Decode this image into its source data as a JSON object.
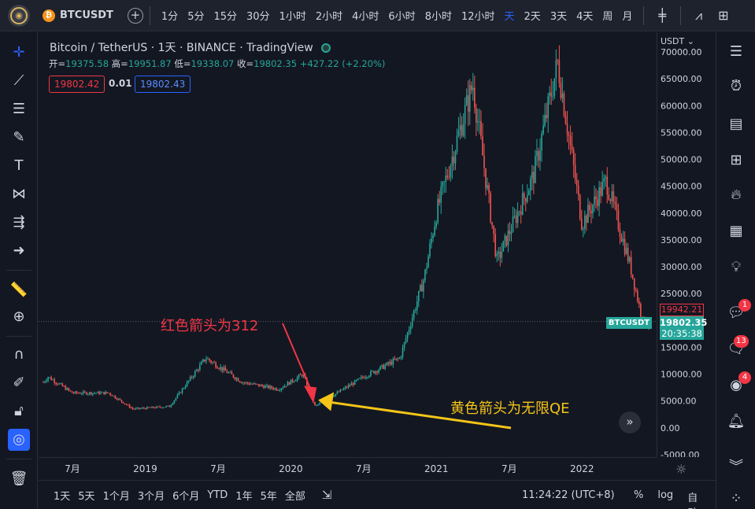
{
  "topbar": {
    "logo_icon": "globe-icon",
    "symbol": "BTCUSDT",
    "intervals": [
      "1分",
      "5分",
      "15分",
      "30分",
      "1小时",
      "2小时",
      "4小时",
      "6小时",
      "8小时",
      "12小时",
      "天",
      "2天",
      "3天",
      "4天",
      "周",
      "月"
    ],
    "active_interval_index": 10,
    "icons": [
      "candles-icon",
      "indicators-icon",
      "templates-icon"
    ]
  },
  "legend": {
    "title": "Bitcoin / TetherUS · 1天 · BINANCE · TradingView",
    "open_label": "开",
    "open": "19375.58",
    "high_label": "高",
    "high": "19951.87",
    "low_label": "低",
    "low": "19338.07",
    "close_label": "收",
    "close": "19802.35",
    "change": "+427.22 (+2.20%)",
    "bid": "19802.42",
    "spread": "0.01",
    "ask": "19802.43"
  },
  "annotations": {
    "red_text": "红色箭头为312",
    "yellow_text": "黄色箭头为无限QE"
  },
  "price_axis": {
    "currency": "USDT",
    "ticks": [
      "70000.00",
      "65000.00",
      "60000.00",
      "55000.00",
      "50000.00",
      "45000.00",
      "40000.00",
      "35000.00",
      "30000.00",
      "25000.00",
      "20000.00",
      "15000.00",
      "10000.00",
      "5000.00",
      "0.00",
      "-5000.00"
    ],
    "tick_values": [
      70000,
      65000,
      60000,
      55000,
      50000,
      45000,
      40000,
      35000,
      30000,
      25000,
      20000,
      15000,
      10000,
      5000,
      0,
      -5000
    ],
    "high_tag": "19942.21",
    "last_price": "19802.35",
    "countdown": "20:35:38",
    "symbol_tag": "BTCUSDT"
  },
  "time_axis": {
    "labels": [
      "7月",
      "2019",
      "7月",
      "2020",
      "7月",
      "2021",
      "7月",
      "2022"
    ]
  },
  "chart_data": {
    "type": "candlestick",
    "symbol": "BTCUSDT",
    "interval": "1天",
    "x_range": [
      "2018-04",
      "2022-06"
    ],
    "ylim": [
      -5000,
      70000
    ],
    "key_points": [
      {
        "x": "2018-04",
        "y": 7000
      },
      {
        "x": "2018-05",
        "y": 9500
      },
      {
        "x": "2018-07",
        "y": 6500
      },
      {
        "x": "2018-10",
        "y": 6500
      },
      {
        "x": "2018-12",
        "y": 3500
      },
      {
        "x": "2019-03",
        "y": 4000
      },
      {
        "x": "2019-06",
        "y": 13000
      },
      {
        "x": "2019-09",
        "y": 8500
      },
      {
        "x": "2019-12",
        "y": 7200
      },
      {
        "x": "2020-02",
        "y": 10000
      },
      {
        "x": "2020-03",
        "y": 4000
      },
      {
        "x": "2020-07",
        "y": 9500
      },
      {
        "x": "2020-10",
        "y": 13000
      },
      {
        "x": "2020-12",
        "y": 28000
      },
      {
        "x": "2021-01",
        "y": 40000
      },
      {
        "x": "2021-04",
        "y": 64000
      },
      {
        "x": "2021-06",
        "y": 31000
      },
      {
        "x": "2021-09",
        "y": 47000
      },
      {
        "x": "2021-11",
        "y": 68000
      },
      {
        "x": "2022-01",
        "y": 38000
      },
      {
        "x": "2022-03",
        "y": 46000
      },
      {
        "x": "2022-05",
        "y": 30000
      },
      {
        "x": "2022-06",
        "y": 19800
      }
    ],
    "last_price": 19802.35,
    "annotations": [
      {
        "text": "红色箭头为312",
        "points_to": "2020-03",
        "color": "#f23645"
      },
      {
        "text": "黄色箭头为无限QE",
        "points_to": "2020-03",
        "color": "#f5c518"
      }
    ]
  },
  "bottombar": {
    "ranges": [
      "1天",
      "5天",
      "1个月",
      "3个月",
      "6个月",
      "YTD",
      "1年",
      "5年",
      "全部"
    ],
    "clock": "11:24:22 (UTC+8)",
    "percent": "%",
    "log": "log",
    "auto": "自动"
  },
  "colors": {
    "up": "#26a69a",
    "down": "#ef5350",
    "accent": "#2962ff"
  }
}
